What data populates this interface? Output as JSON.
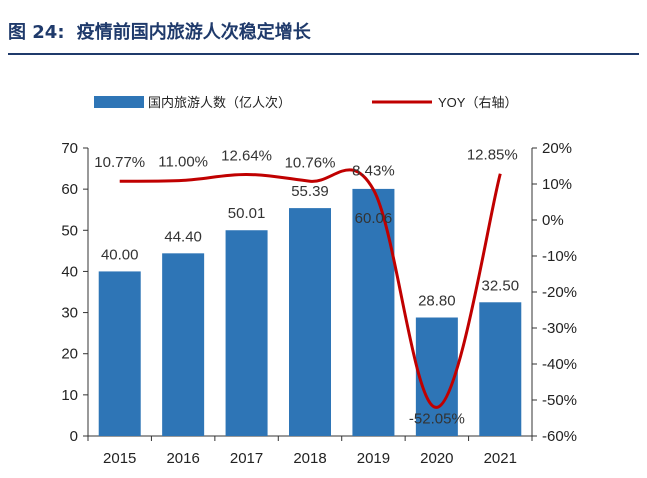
{
  "figure": {
    "label": "图 24:",
    "title": "疫情前国内旅游人次稳定增长"
  },
  "chart_data": {
    "type": "bar",
    "categories": [
      "2015",
      "2016",
      "2017",
      "2018",
      "2019",
      "2020",
      "2021"
    ],
    "series": [
      {
        "name": "国内旅游人数（亿人次）",
        "type": "bar",
        "axis": "left",
        "color": "#2e75b6",
        "values": [
          40.0,
          44.4,
          50.01,
          55.39,
          60.06,
          28.8,
          32.5
        ],
        "labels": [
          "40.00",
          "44.40",
          "50.01",
          "55.39",
          "60.06",
          "28.80",
          "32.50"
        ]
      },
      {
        "name": "YOY（右轴）",
        "type": "line",
        "axis": "right",
        "color": "#c00000",
        "values": [
          10.77,
          11.0,
          12.64,
          10.76,
          8.43,
          -52.05,
          12.85
        ],
        "labels": [
          "10.77%",
          "11.00%",
          "12.64%",
          "10.76%",
          "8.43%",
          "-52.05%",
          "12.85%"
        ]
      }
    ],
    "y_left": {
      "min": 0,
      "max": 70,
      "ticks": [
        "0",
        "10",
        "20",
        "30",
        "40",
        "50",
        "60",
        "70"
      ]
    },
    "y_right": {
      "min": -60,
      "max": 20,
      "ticks": [
        "-60%",
        "-50%",
        "-40%",
        "-30%",
        "-20%",
        "-10%",
        "0%",
        "10%",
        "20%"
      ]
    },
    "legend": "top",
    "grid": false
  }
}
